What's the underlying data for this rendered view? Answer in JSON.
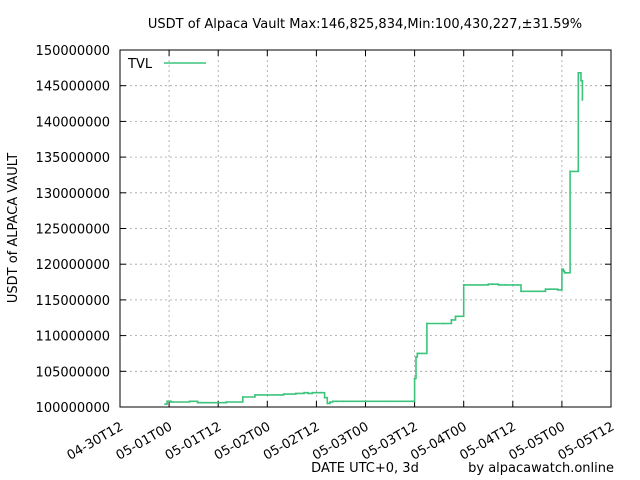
{
  "chart_data": {
    "type": "line",
    "title": "USDT of Alpaca Vault Max:146,825,834,Min:100,430,227,±31.59%",
    "xlabel": "DATE UTC+0, 3d",
    "ylabel": "USDT of ALPACA VAULT",
    "credit": "by alpacawatch.online",
    "grid": true,
    "legend_position": "top-left",
    "colors": {
      "series": "#3cc47c",
      "grid": "#a0a0a0",
      "axis": "#000000"
    },
    "x_ticks": [
      "04-30T12",
      "05-01T00",
      "05-01T12",
      "05-02T00",
      "05-02T12",
      "05-03T00",
      "05-03T12",
      "05-04T00",
      "05-04T12",
      "05-05T00",
      "05-05T12"
    ],
    "xlim": [
      "2022-04-30T12:00",
      "2022-05-05T12:00"
    ],
    "ylim": [
      100000000,
      150000000
    ],
    "y_ticks": [
      100000000,
      105000000,
      110000000,
      115000000,
      120000000,
      125000000,
      130000000,
      135000000,
      140000000,
      145000000,
      150000000
    ],
    "series": [
      {
        "name": "TVL",
        "x": [
          "2022-04-30T23:00",
          "2022-04-30T23:30",
          "2022-05-01T00:30",
          "2022-05-01T01:00",
          "2022-05-01T05:00",
          "2022-05-01T07:00",
          "2022-05-01T09:00",
          "2022-05-01T14:00",
          "2022-05-01T18:00",
          "2022-05-01T21:00",
          "2022-05-02T00:00",
          "2022-05-02T04:00",
          "2022-05-02T07:00",
          "2022-05-02T09:00",
          "2022-05-02T10:00",
          "2022-05-02T11:00",
          "2022-05-02T13:00",
          "2022-05-02T14:00",
          "2022-05-02T14:40",
          "2022-05-02T15:20",
          "2022-05-02T16:00",
          "2022-05-02T17:00",
          "2022-05-02T18:30",
          "2022-05-03T00:00",
          "2022-05-03T06:00",
          "2022-05-03T12:00",
          "2022-05-03T12:20",
          "2022-05-03T12:40",
          "2022-05-03T13:00",
          "2022-05-03T15:00",
          "2022-05-03T19:00",
          "2022-05-03T21:00",
          "2022-05-03T22:00",
          "2022-05-04T00:00",
          "2022-05-04T06:00",
          "2022-05-04T07:00",
          "2022-05-04T08:30",
          "2022-05-04T10:00",
          "2022-05-04T12:00",
          "2022-05-04T14:00",
          "2022-05-04T20:00",
          "2022-05-04T21:00",
          "2022-05-04T23:00",
          "2022-05-05T00:00",
          "2022-05-05T00:20",
          "2022-05-05T00:30",
          "2022-05-05T00:40",
          "2022-05-05T01:00",
          "2022-05-05T02:00",
          "2022-05-05T04:00",
          "2022-05-05T04:40",
          "2022-05-05T05:00"
        ],
        "values": [
          100400000,
          100800000,
          100700000,
          100700000,
          100800000,
          100600000,
          100600000,
          100700000,
          101400000,
          101700000,
          101700000,
          101800000,
          101900000,
          102000000,
          101900000,
          102000000,
          102000000,
          101300000,
          100500000,
          100700000,
          100800000,
          100800000,
          100800000,
          100800000,
          100800000,
          104000000,
          107000000,
          107500000,
          107500000,
          111700000,
          111700000,
          112200000,
          112700000,
          117100000,
          117200000,
          117200000,
          117100000,
          117100000,
          117100000,
          116200000,
          116500000,
          116500000,
          116400000,
          119300000,
          119100000,
          119000000,
          118800000,
          118800000,
          133000000,
          146800000,
          145700000,
          143000000
        ]
      }
    ]
  }
}
